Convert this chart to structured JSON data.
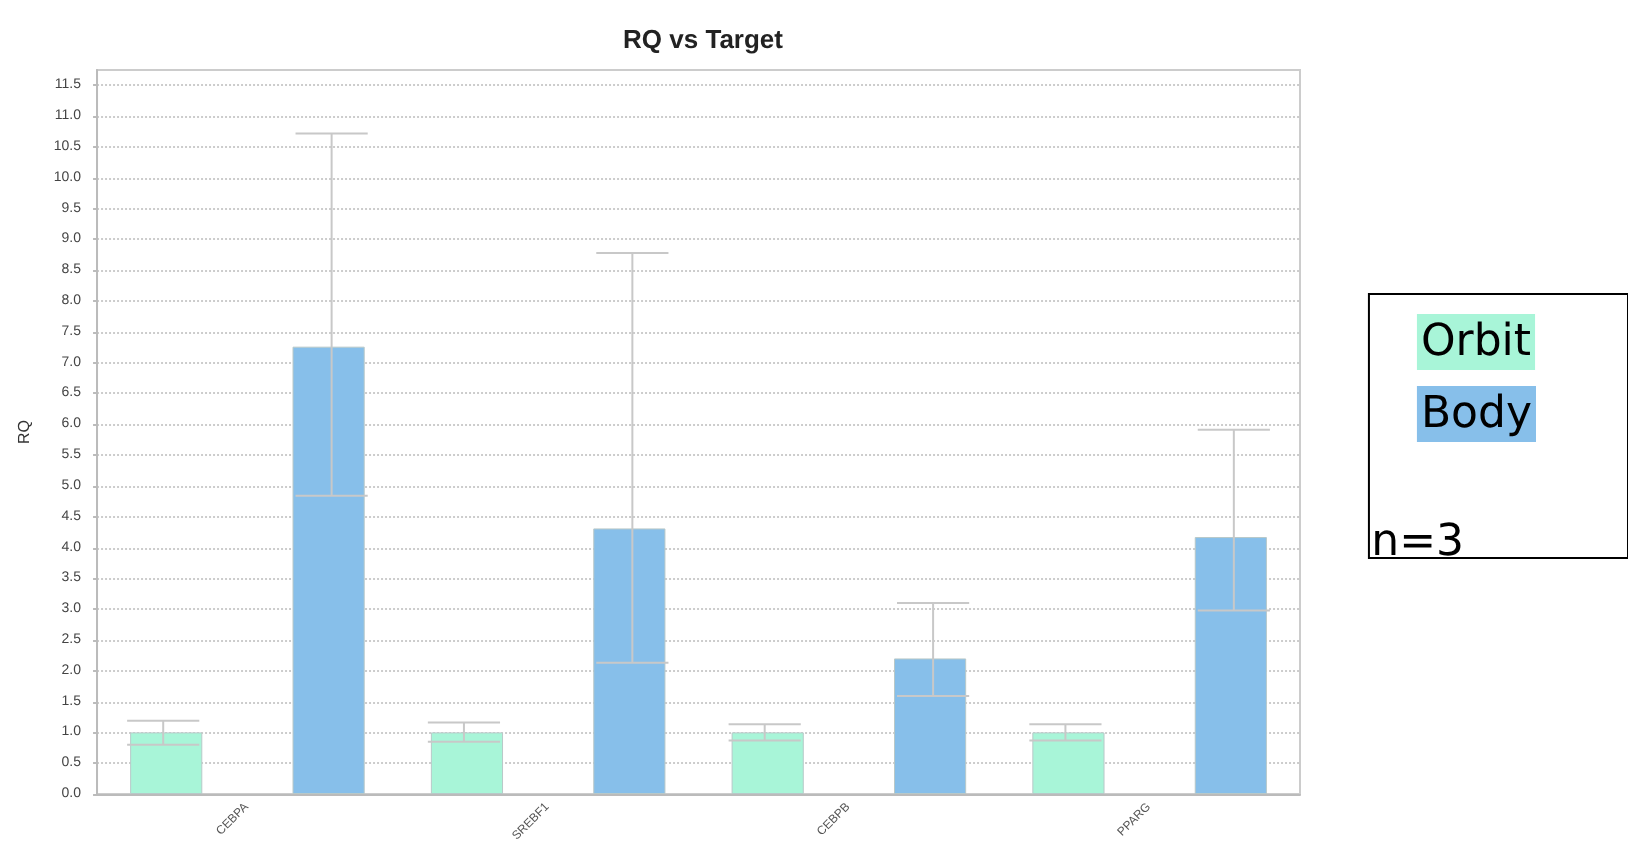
{
  "chart_data": {
    "type": "bar",
    "title": "RQ vs Target",
    "ylabel": "RQ",
    "categories": [
      "CEBPA",
      "SREBF1",
      "CEBPB",
      "PPARG"
    ],
    "series": [
      {
        "name": "Orbit",
        "color": "#a8f5d8",
        "values": [
          1.0,
          1.0,
          1.0,
          1.0
        ],
        "errors": [
          [
            0.8,
            1.19
          ],
          [
            0.85,
            1.16
          ],
          [
            0.87,
            1.13
          ],
          [
            0.87,
            1.13
          ]
        ]
      },
      {
        "name": "Body",
        "color": "#87bfea",
        "values": [
          7.26,
          4.31,
          2.2,
          4.17
        ],
        "errors": [
          [
            4.84,
            10.72
          ],
          [
            2.13,
            8.78
          ],
          [
            1.59,
            3.1
          ],
          [
            2.98,
            5.91
          ]
        ]
      }
    ],
    "ylim": [
      0,
      11.75
    ],
    "yticks": [
      {
        "value": 0,
        "label": "0.0"
      },
      {
        "value": 0.5,
        "label": "0.5"
      },
      {
        "value": 1,
        "label": "1.0"
      },
      {
        "value": 1.5,
        "label": "1.5"
      },
      {
        "value": 2,
        "label": "2.0"
      },
      {
        "value": 2.5,
        "label": "2.5"
      },
      {
        "value": 3,
        "label": "3.0"
      },
      {
        "value": 3.5,
        "label": "3.5"
      },
      {
        "value": 4,
        "label": "4.0"
      },
      {
        "value": 4.5,
        "label": "4.5"
      },
      {
        "value": 5,
        "label": "5.0"
      },
      {
        "value": 5.5,
        "label": "5.5"
      },
      {
        "value": 6,
        "label": "6.0"
      },
      {
        "value": 6.5,
        "label": "6.5"
      },
      {
        "value": 7,
        "label": "7.0"
      },
      {
        "value": 7.5,
        "label": "7.5"
      },
      {
        "value": 8,
        "label": "8.0"
      },
      {
        "value": 8.5,
        "label": "8.5"
      },
      {
        "value": 9,
        "label": "9.0"
      },
      {
        "value": 9.5,
        "label": "9.5"
      },
      {
        "value": 10,
        "label": "10.0"
      },
      {
        "value": 10.5,
        "label": "10.5"
      },
      {
        "value": 11,
        "label": "11.0"
      },
      {
        "value": 11.5,
        "label": "11.5"
      }
    ],
    "grid": "y",
    "legend": "right",
    "annotations": [
      "n=3"
    ]
  }
}
